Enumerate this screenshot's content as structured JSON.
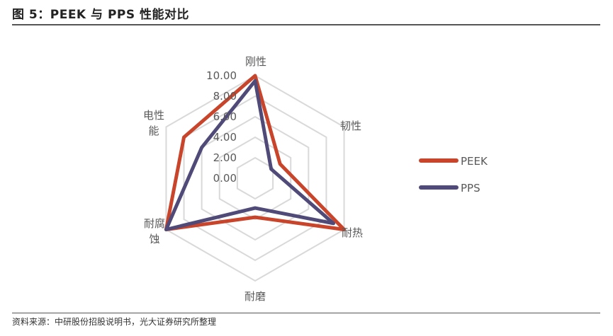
{
  "figure": {
    "title": "图 5：PEEK 与 PPS 性能对比",
    "source": "资料来源：中研股份招股说明书，光大证券研究所整理"
  },
  "chart_data": {
    "type": "radar",
    "title": "图 5：PEEK 与 PPS 性能对比",
    "categories": [
      "刚性",
      "韧性",
      "耐热",
      "耐磨",
      "耐腐蚀",
      "电性能"
    ],
    "category_label_lines": [
      [
        "刚性"
      ],
      [
        "韧性"
      ],
      [
        "耐热"
      ],
      [
        "耐磨"
      ],
      [
        "耐腐",
        "蚀"
      ],
      [
        "电性",
        "能"
      ]
    ],
    "series": [
      {
        "name": "PEEK",
        "color": "#C8442A",
        "values": [
          10.0,
          2.8,
          10.0,
          3.8,
          10.0,
          8.0
        ]
      },
      {
        "name": "PPS",
        "color": "#4F4A78",
        "values": [
          9.5,
          1.8,
          8.8,
          2.9,
          10.0,
          6.0
        ]
      }
    ],
    "radial_ticks": [
      "0.00",
      "2.00",
      "4.00",
      "6.00",
      "8.00",
      "10.00"
    ],
    "rlim": [
      0,
      10
    ],
    "grid": true,
    "grid_color": "#D9D9D9",
    "legend_position": "right"
  }
}
